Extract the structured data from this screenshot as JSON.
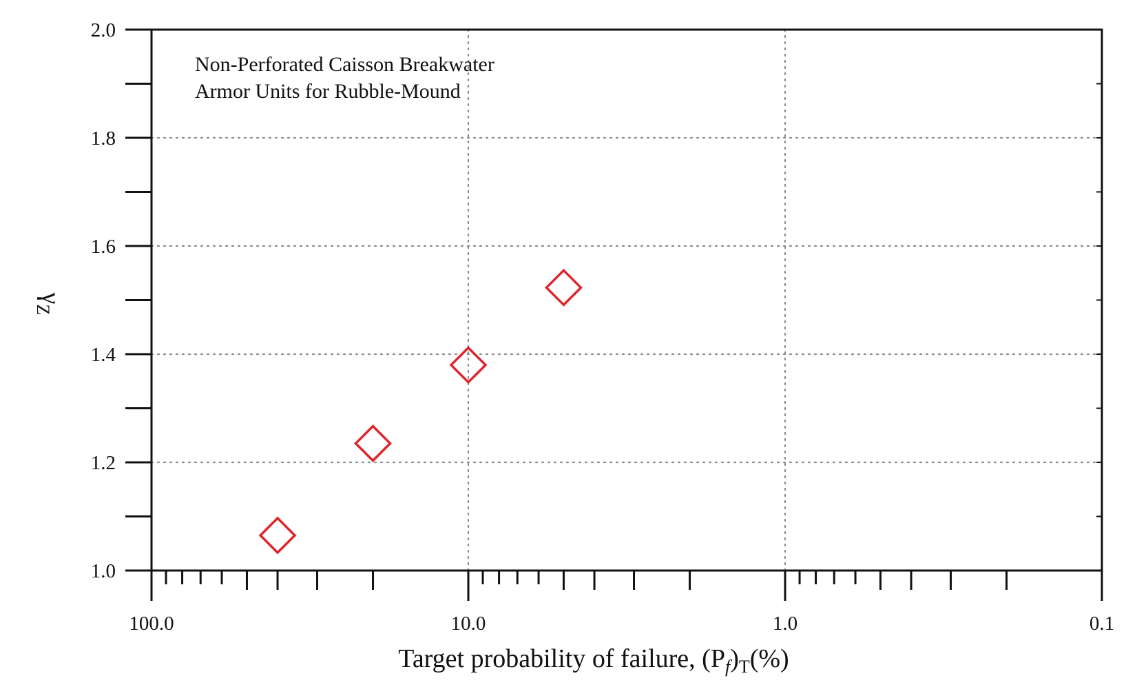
{
  "chart_data": {
    "type": "scatter",
    "title": "",
    "annotation": [
      "Non-Perforated Caisson Breakwater",
      "Armor Units for Rubble-Mound"
    ],
    "xlabel": {
      "main": "Target probability of failure, (P",
      "f_sub": "f",
      "close": ")",
      "T_sub": "T",
      "unit": "(%)"
    },
    "ylabel": {
      "symbol": "γ",
      "sub": "Z"
    },
    "x_scale": "log",
    "x_reversed": true,
    "xlim": [
      100.0,
      0.1
    ],
    "ylim": [
      1.0,
      2.0
    ],
    "x_major_ticks": [
      {
        "value": 100.0,
        "label": "100.0"
      },
      {
        "value": 10.0,
        "label": "10.0"
      },
      {
        "value": 1.0,
        "label": "1.0"
      },
      {
        "value": 0.1,
        "label": "0.1"
      }
    ],
    "y_major_ticks": [
      {
        "value": 1.0,
        "label": "1.0"
      },
      {
        "value": 1.2,
        "label": "1.2"
      },
      {
        "value": 1.4,
        "label": "1.4"
      },
      {
        "value": 1.6,
        "label": "1.6"
      },
      {
        "value": 1.8,
        "label": "1.8"
      },
      {
        "value": 2.0,
        "label": "2.0"
      }
    ],
    "grid": true,
    "marker": "open-diamond",
    "marker_color": "#e0242b",
    "series": [
      {
        "points": [
          {
            "x": 40.0,
            "y": 1.065
          },
          {
            "x": 20.0,
            "y": 1.235
          },
          {
            "x": 10.0,
            "y": 1.38
          },
          {
            "x": 5.0,
            "y": 1.523
          }
        ]
      }
    ]
  }
}
